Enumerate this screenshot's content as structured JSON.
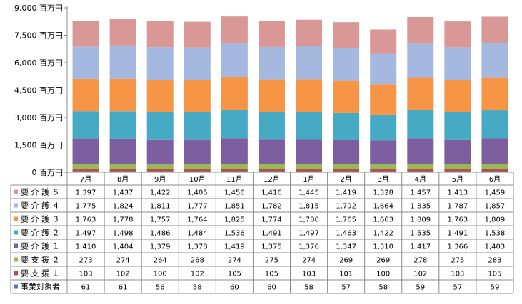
{
  "chart_data": {
    "type": "bar",
    "stacked": true,
    "categories": [
      "7月",
      "8月",
      "9月",
      "10月",
      "11月",
      "12月",
      "1月",
      "2月",
      "3月",
      "4月",
      "5月",
      "6月"
    ],
    "y_axis_ticks": [
      "0 百万円",
      "1,500 百万円",
      "3,000 百万円",
      "4,500 百万円",
      "6,000 百万円",
      "7,500 百万円",
      "9,000 百万円"
    ],
    "ylim": [
      0,
      9000
    ],
    "y_unit": "百万円",
    "grid": false,
    "legend_placement": "data-table-left",
    "series": [
      {
        "name": "事業対象者",
        "color": "#4a7ebb",
        "values": [
          61,
          61,
          56,
          58,
          60,
          60,
          58,
          57,
          58,
          59,
          57,
          59
        ]
      },
      {
        "name": "要支援１",
        "color": "#be4b48",
        "values": [
          103,
          102,
          100,
          102,
          105,
          105,
          103,
          101,
          100,
          102,
          103,
          105
        ]
      },
      {
        "name": "要支援２",
        "color": "#98b954",
        "values": [
          273,
          274,
          264,
          268,
          274,
          275,
          274,
          269,
          269,
          278,
          275,
          283
        ]
      },
      {
        "name": "要介護１",
        "color": "#7d5fa0",
        "values": [
          1410,
          1404,
          1379,
          1378,
          1419,
          1375,
          1376,
          1347,
          1310,
          1417,
          1366,
          1403
        ]
      },
      {
        "name": "要介護２",
        "color": "#46aac5",
        "values": [
          1497,
          1498,
          1486,
          1484,
          1536,
          1491,
          1497,
          1463,
          1422,
          1535,
          1491,
          1538
        ]
      },
      {
        "name": "要介護３",
        "color": "#f69545",
        "values": [
          1763,
          1778,
          1757,
          1764,
          1825,
          1774,
          1780,
          1765,
          1663,
          1809,
          1763,
          1809
        ]
      },
      {
        "name": "要介護４",
        "color": "#a5b8e0",
        "values": [
          1775,
          1824,
          1811,
          1777,
          1851,
          1782,
          1815,
          1792,
          1664,
          1835,
          1787,
          1857
        ]
      },
      {
        "name": "要介護５",
        "color": "#d99796",
        "values": [
          1397,
          1437,
          1422,
          1405,
          1456,
          1416,
          1445,
          1419,
          1328,
          1457,
          1413,
          1459
        ]
      }
    ],
    "table_rows": [
      {
        "label": "要 介 護 ５",
        "series_index": 7,
        "cells": [
          "1,397",
          "1,437",
          "1,422",
          "1,405",
          "1,456",
          "1,416",
          "1,445",
          "1,419",
          "1,328",
          "1,457",
          "1,413",
          "1,459"
        ]
      },
      {
        "label": "要 介 護 ４",
        "series_index": 6,
        "cells": [
          "1,775",
          "1,824",
          "1,811",
          "1,777",
          "1,851",
          "1,782",
          "1,815",
          "1,792",
          "1,664",
          "1,835",
          "1,787",
          "1,857"
        ]
      },
      {
        "label": "要 介 護 ３",
        "series_index": 5,
        "cells": [
          "1,763",
          "1,778",
          "1,757",
          "1,764",
          "1,825",
          "1,774",
          "1,780",
          "1,765",
          "1,663",
          "1,809",
          "1,763",
          "1,809"
        ]
      },
      {
        "label": "要 介 護 ２",
        "series_index": 4,
        "cells": [
          "1,497",
          "1,498",
          "1,486",
          "1,484",
          "1,536",
          "1,491",
          "1,497",
          "1,463",
          "1,422",
          "1,535",
          "1,491",
          "1,538"
        ]
      },
      {
        "label": "要 介 護 １",
        "series_index": 3,
        "cells": [
          "1,410",
          "1,404",
          "1,379",
          "1,378",
          "1,419",
          "1,375",
          "1,376",
          "1,347",
          "1,310",
          "1,417",
          "1,366",
          "1,403"
        ]
      },
      {
        "label": "要 支 援 ２",
        "series_index": 2,
        "cells": [
          "273",
          "274",
          "264",
          "268",
          "274",
          "275",
          "274",
          "269",
          "269",
          "278",
          "275",
          "283"
        ]
      },
      {
        "label": "要 支 援 １",
        "series_index": 1,
        "cells": [
          "103",
          "102",
          "100",
          "102",
          "105",
          "105",
          "103",
          "101",
          "100",
          "102",
          "103",
          "105"
        ]
      },
      {
        "label": "事業対象者",
        "series_index": 0,
        "cells": [
          "61",
          "61",
          "56",
          "58",
          "60",
          "60",
          "58",
          "57",
          "58",
          "59",
          "57",
          "59"
        ]
      }
    ]
  }
}
